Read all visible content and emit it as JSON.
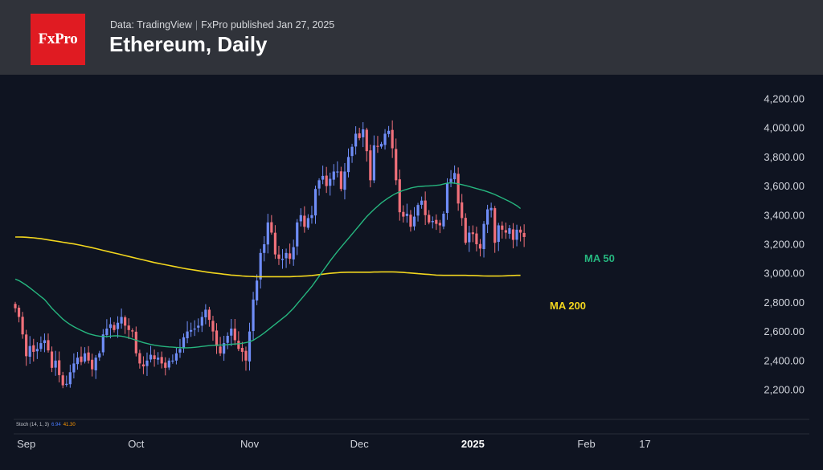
{
  "header": {
    "logo_text": "FxPro",
    "source": "Data: TradingView",
    "separator": "|",
    "published": "FxPro published Jan 27, 2025",
    "title": "Ethereum, Daily"
  },
  "colors": {
    "background": "#0f1421",
    "header": "#30333a",
    "logo": "#e01b22",
    "candle_up": "#6f8df7",
    "candle_down": "#f0707a",
    "ma50": "#26b67f",
    "ma200": "#f2d61e"
  },
  "indicator_label": {
    "name": "Stoch (14, 1, 3)",
    "k": "6.94",
    "d": "41.30"
  },
  "annotations": {
    "ma50": "MA 50",
    "ma200": "MA 200"
  },
  "chart_data": {
    "type": "candlestick",
    "title": "Ethereum, Daily",
    "y_ticks": [
      "2,200.00",
      "2,400.00",
      "2,600.00",
      "2,800.00",
      "3,000.00",
      "3,200.00",
      "3,400.00",
      "3,600.00",
      "3,800.00",
      "4,000.00",
      "4,200.00"
    ],
    "y_values": [
      2200,
      2400,
      2600,
      2800,
      3000,
      3200,
      3400,
      3600,
      3800,
      4000,
      4200
    ],
    "ylim": [
      2000,
      4300
    ],
    "x_ticks": [
      {
        "label": "Sep",
        "day": 3,
        "bold": false
      },
      {
        "label": "Oct",
        "day": 33,
        "bold": false
      },
      {
        "label": "Nov",
        "day": 64,
        "bold": false
      },
      {
        "label": "Dec",
        "day": 94,
        "bold": false
      },
      {
        "label": "2025",
        "day": 125,
        "bold": true
      },
      {
        "label": "Feb",
        "day": 156,
        "bold": false
      },
      {
        "label": "17",
        "day": 172,
        "bold": false
      }
    ],
    "first_date": "Aug 31, 2024",
    "last_date": "Jan 27, 2025",
    "xlim_days": [
      -0.5,
      179
    ],
    "closes": [
      2760,
      2700,
      2580,
      2430,
      2500,
      2460,
      2480,
      2520,
      2540,
      2470,
      2350,
      2400,
      2300,
      2230,
      2240,
      2320,
      2380,
      2420,
      2390,
      2450,
      2400,
      2340,
      2420,
      2450,
      2580,
      2620,
      2650,
      2610,
      2660,
      2700,
      2640,
      2610,
      2600,
      2450,
      2380,
      2360,
      2400,
      2440,
      2410,
      2420,
      2380,
      2350,
      2400,
      2400,
      2450,
      2480,
      2560,
      2600,
      2610,
      2620,
      2640,
      2700,
      2750,
      2680,
      2600,
      2500,
      2450,
      2520,
      2570,
      2620,
      2540,
      2480,
      2460,
      2400,
      2600,
      2820,
      2950,
      3140,
      3200,
      3350,
      3280,
      3130,
      3100,
      3100,
      3140,
      3100,
      3180,
      3350,
      3400,
      3320,
      3380,
      3400,
      3580,
      3640,
      3670,
      3600,
      3650,
      3700,
      3700,
      3580,
      3700,
      3800,
      3870,
      3960,
      3930,
      3990,
      3840,
      3640,
      3880,
      3870,
      3890,
      3960,
      3980,
      3860,
      3640,
      3420,
      3390,
      3410,
      3320,
      3390,
      3470,
      3500,
      3400,
      3350,
      3360,
      3340,
      3330,
      3410,
      3620,
      3650,
      3690,
      3480,
      3380,
      3210,
      3280,
      3270,
      3200,
      3170,
      3340,
      3440,
      3450,
      3210,
      3330,
      3300,
      3280,
      3310,
      3230,
      3300,
      3280,
      3250
    ],
    "ma50": [
      2960,
      2950,
      2935,
      2918,
      2900,
      2880,
      2860,
      2840,
      2820,
      2790,
      2760,
      2735,
      2710,
      2685,
      2665,
      2648,
      2633,
      2620,
      2608,
      2596,
      2585,
      2578,
      2572,
      2568,
      2566,
      2566,
      2568,
      2570,
      2570,
      2568,
      2563,
      2556,
      2548,
      2540,
      2532,
      2524,
      2517,
      2511,
      2506,
      2502,
      2499,
      2496,
      2494,
      2492,
      2490,
      2489,
      2488,
      2488,
      2489,
      2491,
      2494,
      2497,
      2500,
      2503,
      2505,
      2506,
      2507,
      2508,
      2510,
      2512,
      2514,
      2516,
      2519,
      2523,
      2530,
      2540,
      2555,
      2572,
      2590,
      2610,
      2630,
      2650,
      2670,
      2690,
      2710,
      2735,
      2760,
      2790,
      2820,
      2850,
      2880,
      2910,
      2945,
      2980,
      3015,
      3050,
      3085,
      3118,
      3150,
      3180,
      3210,
      3240,
      3270,
      3300,
      3330,
      3360,
      3390,
      3415,
      3440,
      3462,
      3484,
      3503,
      3520,
      3536,
      3550,
      3561,
      3570,
      3578,
      3586,
      3592,
      3596,
      3598,
      3600,
      3601,
      3603,
      3605,
      3608,
      3614,
      3620,
      3622,
      3620,
      3615,
      3610,
      3604,
      3597,
      3590,
      3583,
      3576,
      3569,
      3561,
      3552,
      3542,
      3530,
      3518,
      3506,
      3494,
      3480,
      3465,
      3446
    ],
    "ma200": [
      3250,
      3250,
      3249,
      3248,
      3246,
      3244,
      3241,
      3238,
      3234,
      3230,
      3226,
      3222,
      3218,
      3214,
      3210,
      3206,
      3202,
      3197,
      3192,
      3187,
      3182,
      3176,
      3170,
      3164,
      3158,
      3152,
      3146,
      3140,
      3134,
      3128,
      3122,
      3116,
      3110,
      3104,
      3098,
      3092,
      3086,
      3080,
      3074,
      3069,
      3064,
      3059,
      3054,
      3049,
      3044,
      3039,
      3034,
      3030,
      3026,
      3022,
      3018,
      3014,
      3010,
      3006,
      3003,
      3000,
      2997,
      2994,
      2991,
      2988,
      2986,
      2984,
      2982,
      2980,
      2979,
      2978,
      2977,
      2977,
      2977,
      2977,
      2977,
      2977,
      2977,
      2977,
      2977,
      2977,
      2978,
      2979,
      2980,
      2981,
      2983,
      2985,
      2988,
      2991,
      2994,
      2997,
      3000,
      3002,
      3004,
      3006,
      3007,
      3008,
      3008,
      3008,
      3008,
      3008,
      3008,
      3008,
      3009,
      3009,
      3010,
      3010,
      3010,
      3010,
      3009,
      3008,
      3006,
      3004,
      3002,
      3000,
      2998,
      2996,
      2994,
      2992,
      2990,
      2988,
      2987,
      2986,
      2986,
      2986,
      2986,
      2986,
      2986,
      2986,
      2985,
      2985,
      2984,
      2983,
      2982,
      2981,
      2981,
      2981,
      2981,
      2982,
      2983,
      2984,
      2985,
      2986,
      2986
    ]
  }
}
